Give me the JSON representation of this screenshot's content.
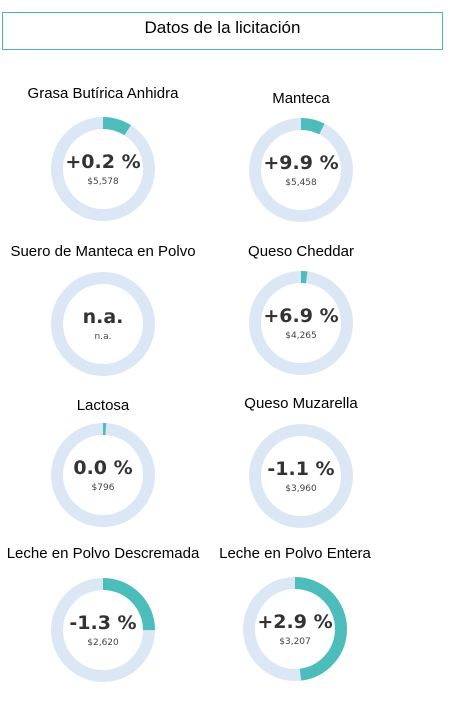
{
  "header": {
    "title": "Datos de la licitación"
  },
  "colors": {
    "track": "#dce7f5",
    "fill": "#4dbdbb",
    "frame": "#4fb6b3"
  },
  "products": [
    {
      "name": "Grasa Butírica Anhidra",
      "change": "+0.2 %",
      "price": "$5,578",
      "progress": 0.09
    },
    {
      "name": "Manteca",
      "change": "+9.9 %",
      "price": "$5,458",
      "progress": 0.075
    },
    {
      "name": "Suero de Manteca en Polvo",
      "change": "n.a.",
      "price": "n.a.",
      "progress": 0
    },
    {
      "name": "Queso Cheddar",
      "change": "+6.9 %",
      "price": "$4,265",
      "progress": 0.02
    },
    {
      "name": "Lactosa",
      "change": "0.0 %",
      "price": "$796",
      "progress": 0.01
    },
    {
      "name": "Queso Muzarella",
      "change": "-1.1 %",
      "price": "$3,960",
      "progress": 0
    },
    {
      "name": "Leche en Polvo Descremada",
      "change": "-1.3 %",
      "price": "$2,620",
      "progress": 0.25
    },
    {
      "name": "Leche en Polvo Entera",
      "change": "+2.9 %",
      "price": "$3,207",
      "progress": 0.48
    }
  ]
}
